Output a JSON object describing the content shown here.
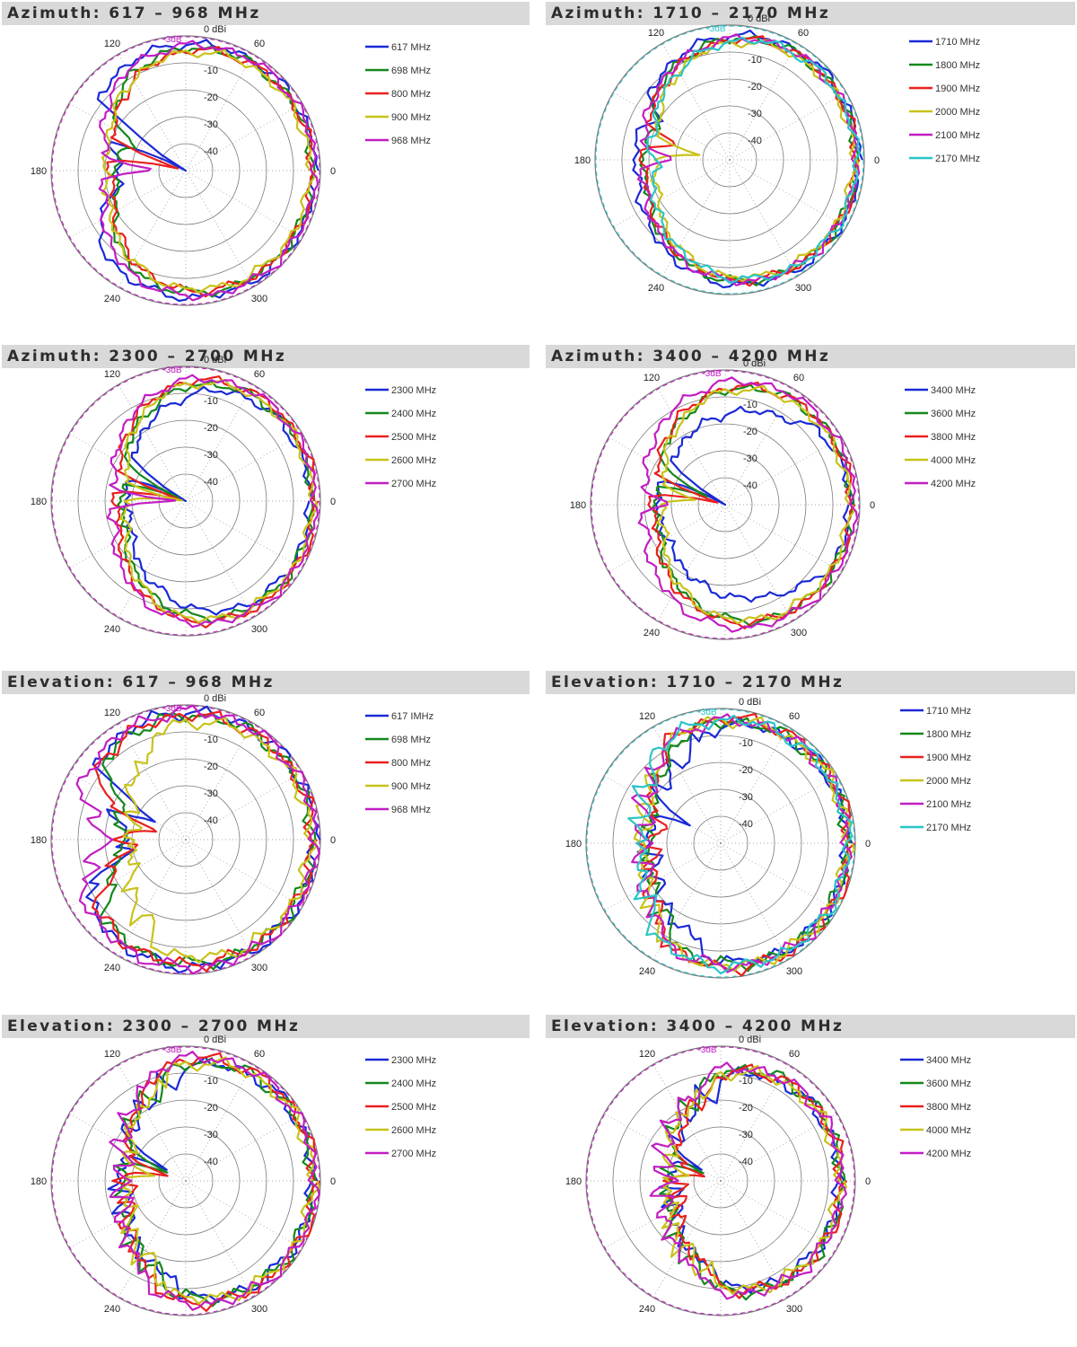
{
  "colors": {
    "blue": "#1a2ad6",
    "green": "#14881c",
    "red": "#e8201e",
    "yellow": "#c8c21a",
    "magenta": "#c21ec2",
    "cyan": "#2ac4c8",
    "header_bg": "#d9d9d9",
    "grid": "#7a7a7a"
  },
  "common": {
    "angle_labels": [
      "0",
      "60",
      "120",
      "180",
      "240",
      "300"
    ],
    "ring_labels": [
      "0 dBi",
      "-10",
      "-20",
      "-30",
      "-40"
    ],
    "ref_label": "-3dB"
  },
  "chart_data": [
    {
      "id": "az-617",
      "title": "Azimuth: 617 – 968 MHz",
      "type": "polar",
      "r_unit": "dBi",
      "r_range": [
        -50,
        0
      ],
      "ref_ring": -3,
      "ref_color": "magenta",
      "series": [
        {
          "name": "617 MHz",
          "color": "blue",
          "shape": "sector",
          "floor": -50,
          "back": -25,
          "hw": 140,
          "peak": -2
        },
        {
          "name": "698 MHz",
          "color": "green",
          "shape": "sector",
          "floor": -30,
          "back": -24,
          "hw": 120,
          "peak": -3
        },
        {
          "name": "800 MHz",
          "color": "red",
          "shape": "sector",
          "floor": -50,
          "back": -22,
          "hw": 110,
          "peak": -3
        },
        {
          "name": "900 MHz",
          "color": "yellow",
          "shape": "sector",
          "floor": -20,
          "back": -20,
          "hw": 115,
          "peak": -4
        },
        {
          "name": "968 MHz",
          "color": "magenta",
          "shape": "sector",
          "floor": -40,
          "back": -19,
          "hw": 125,
          "peak": -2
        }
      ]
    },
    {
      "id": "az-1710",
      "title": "Azimuth: 1710 – 2170 MHz",
      "type": "polar",
      "r_unit": "dBi",
      "r_range": [
        -50,
        0
      ],
      "ref_ring": -3,
      "ref_color": "cyan",
      "series": [
        {
          "name": "1710 MHz",
          "color": "blue",
          "shape": "sector",
          "floor": -20,
          "back": -15,
          "hw": 120,
          "peak": -2
        },
        {
          "name": "1800 MHz",
          "color": "green",
          "shape": "sector",
          "floor": -22,
          "back": -18,
          "hw": 115,
          "peak": -3
        },
        {
          "name": "1900 MHz",
          "color": "red",
          "shape": "sector",
          "floor": -30,
          "back": -18,
          "hw": 110,
          "peak": -3
        },
        {
          "name": "2000 MHz",
          "color": "yellow",
          "shape": "sector",
          "floor": -40,
          "back": -22,
          "hw": 110,
          "peak": -4
        },
        {
          "name": "2100 MHz",
          "color": "magenta",
          "shape": "sector",
          "floor": -30,
          "back": -17,
          "hw": 115,
          "peak": -3
        },
        {
          "name": "2170 MHz",
          "color": "cyan",
          "shape": "sector",
          "floor": -25,
          "back": -20,
          "hw": 105,
          "peak": -3
        }
      ]
    },
    {
      "id": "az-2300",
      "title": "Azimuth: 2300 – 2700 MHz",
      "type": "polar",
      "r_unit": "dBi",
      "r_range": [
        -50,
        0
      ],
      "ref_ring": -3,
      "ref_color": "magenta",
      "series": [
        {
          "name": "2300 MHz",
          "color": "blue",
          "shape": "sector",
          "floor": -50,
          "back": -28,
          "hw": 85,
          "peak": -4
        },
        {
          "name": "2400 MHz",
          "color": "green",
          "shape": "sector",
          "floor": -50,
          "back": -26,
          "hw": 95,
          "peak": -3
        },
        {
          "name": "2500 MHz",
          "color": "red",
          "shape": "sector",
          "floor": -50,
          "back": -24,
          "hw": 100,
          "peak": -2
        },
        {
          "name": "2600 MHz",
          "color": "yellow",
          "shape": "sector",
          "floor": -50,
          "back": -27,
          "hw": 100,
          "peak": -3
        },
        {
          "name": "2700 MHz",
          "color": "magenta",
          "shape": "sector",
          "floor": -50,
          "back": -22,
          "hw": 105,
          "peak": -2
        }
      ]
    },
    {
      "id": "az-3400",
      "title": "Azimuth: 3400 – 4200 MHz",
      "type": "polar",
      "r_unit": "dBi",
      "r_range": [
        -50,
        0
      ],
      "ref_ring": -3,
      "ref_color": "magenta",
      "series": [
        {
          "name": "3400 MHz",
          "color": "blue",
          "shape": "sector",
          "floor": -50,
          "back": -25,
          "hw": 50,
          "peak": -4
        },
        {
          "name": "3600 MHz",
          "color": "green",
          "shape": "sector",
          "floor": -45,
          "back": -24,
          "hw": 95,
          "peak": -3
        },
        {
          "name": "3800 MHz",
          "color": "red",
          "shape": "sector",
          "floor": -50,
          "back": -23,
          "hw": 100,
          "peak": -3
        },
        {
          "name": "4000 MHz",
          "color": "yellow",
          "shape": "sector",
          "floor": -40,
          "back": -26,
          "hw": 100,
          "peak": -4
        },
        {
          "name": "4200 MHz",
          "color": "magenta",
          "shape": "sector",
          "floor": -30,
          "back": -19,
          "hw": 110,
          "peak": -2
        }
      ]
    },
    {
      "id": "el-617",
      "title": "Elevation: 617 – 968 MHz",
      "type": "polar",
      "r_unit": "dBi",
      "r_range": [
        -50,
        0
      ],
      "ref_ring": -3,
      "ref_color": "magenta",
      "series": [
        {
          "name": "617 IMHz",
          "color": "blue",
          "shape": "lobes",
          "floor": -35,
          "back": -25,
          "hw": 150,
          "peak": -2
        },
        {
          "name": "698 MHz",
          "color": "green",
          "shape": "lobes",
          "floor": -25,
          "back": -22,
          "hw": 140,
          "peak": -3
        },
        {
          "name": "800 MHz",
          "color": "red",
          "shape": "lobes",
          "floor": -40,
          "back": -24,
          "hw": 145,
          "peak": -3
        },
        {
          "name": "900 MHz",
          "color": "yellow",
          "shape": "lobes",
          "floor": -30,
          "back": -26,
          "hw": 110,
          "peak": -4
        },
        {
          "name": "968 MHz",
          "color": "magenta",
          "shape": "lobes",
          "floor": -15,
          "back": -15,
          "hw": 160,
          "peak": -2
        }
      ]
    },
    {
      "id": "el-1710",
      "title": "Elevation: 1710 – 2170 MHz",
      "type": "polar",
      "r_unit": "dBi",
      "r_range": [
        -50,
        0
      ],
      "ref_ring": -3,
      "ref_color": "cyan",
      "series": [
        {
          "name": "1710 MHz",
          "color": "blue",
          "shape": "lobes",
          "floor": -35,
          "back": -20,
          "hw": 100,
          "peak": -3
        },
        {
          "name": "1800 MHz",
          "color": "green",
          "shape": "lobes",
          "floor": -25,
          "back": -19,
          "hw": 115,
          "peak": -3
        },
        {
          "name": "1900 MHz",
          "color": "red",
          "shape": "lobes",
          "floor": -30,
          "back": -20,
          "hw": 120,
          "peak": -2
        },
        {
          "name": "2000 MHz",
          "color": "yellow",
          "shape": "lobes",
          "floor": -20,
          "back": -17,
          "hw": 125,
          "peak": -3
        },
        {
          "name": "2100 MHz",
          "color": "magenta",
          "shape": "lobes",
          "floor": -20,
          "back": -17,
          "hw": 125,
          "peak": -3
        },
        {
          "name": "2170 MHz",
          "color": "cyan",
          "shape": "lobes",
          "floor": -20,
          "back": -16,
          "hw": 130,
          "peak": -3
        }
      ]
    },
    {
      "id": "el-2300",
      "title": "Elevation: 2300 – 2700 MHz",
      "type": "polar",
      "r_unit": "dBi",
      "r_range": [
        -50,
        0
      ],
      "ref_ring": -3,
      "ref_color": "magenta",
      "series": [
        {
          "name": "2300 MHz",
          "color": "blue",
          "shape": "lobes",
          "floor": -40,
          "back": -22,
          "hw": 95,
          "peak": -3
        },
        {
          "name": "2400 MHz",
          "color": "green",
          "shape": "lobes",
          "floor": -45,
          "back": -22,
          "hw": 100,
          "peak": -3
        },
        {
          "name": "2500 MHz",
          "color": "red",
          "shape": "lobes",
          "floor": -45,
          "back": -24,
          "hw": 105,
          "peak": -2
        },
        {
          "name": "2600 MHz",
          "color": "yellow",
          "shape": "lobes",
          "floor": -40,
          "back": -24,
          "hw": 100,
          "peak": -3
        },
        {
          "name": "2700 MHz",
          "color": "magenta",
          "shape": "lobes",
          "floor": -20,
          "back": -22,
          "hw": 110,
          "peak": -2
        }
      ]
    },
    {
      "id": "el-3400",
      "title": "Elevation: 3400 – 4200 MHz",
      "type": "polar",
      "r_unit": "dBi",
      "r_range": [
        -50,
        0
      ],
      "ref_ring": -3,
      "ref_color": "magenta",
      "series": [
        {
          "name": "3400 MHz",
          "color": "blue",
          "shape": "lobes",
          "floor": -40,
          "back": -28,
          "hw": 90,
          "peak": -6
        },
        {
          "name": "3600 MHz",
          "color": "green",
          "shape": "lobes",
          "floor": -45,
          "back": -26,
          "hw": 95,
          "peak": -5
        },
        {
          "name": "3800 MHz",
          "color": "red",
          "shape": "lobes",
          "floor": -45,
          "back": -30,
          "hw": 90,
          "peak": -5
        },
        {
          "name": "4000 MHz",
          "color": "yellow",
          "shape": "lobes",
          "floor": -40,
          "back": -26,
          "hw": 95,
          "peak": -6
        },
        {
          "name": "4200 MHz",
          "color": "magenta",
          "shape": "lobes",
          "floor": -35,
          "back": -24,
          "hw": 100,
          "peak": -5
        }
      ]
    }
  ]
}
